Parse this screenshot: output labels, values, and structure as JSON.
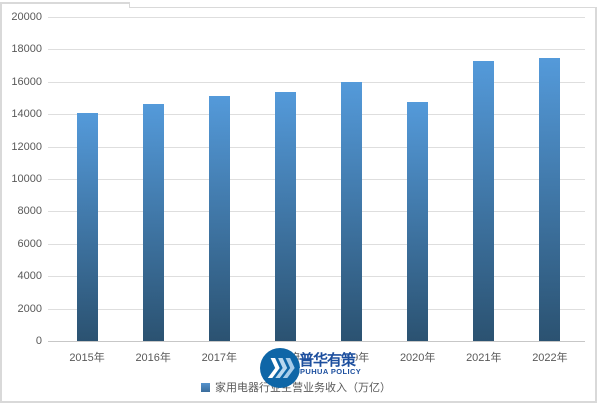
{
  "chart_data": {
    "type": "bar",
    "title": "",
    "categories": [
      "2015年",
      "2016年",
      "2017年",
      "2018年",
      "2019年",
      "2020年",
      "2021年",
      "2022年"
    ],
    "values": [
      14050,
      14600,
      15100,
      15400,
      16000,
      14750,
      17300,
      17500
    ],
    "ylim": [
      0,
      20000
    ],
    "ytick_step": 2000,
    "yticks": [
      0,
      2000,
      4000,
      6000,
      8000,
      10000,
      12000,
      14000,
      16000,
      18000,
      20000
    ],
    "xlabel": "",
    "ylabel": "",
    "grid": true,
    "legend_position": "bottom",
    "legend": "家用电器行业主营业务收入（万亿）",
    "colors": {
      "bar_top": "#549ada",
      "bar_bottom": "#2b5271",
      "gridline": "#dedede",
      "axis": "#c7c7c7",
      "label": "#595959",
      "border": "#d9d9d9"
    }
  },
  "watermark": {
    "name_cn": "普华有策",
    "name_en": "PUHUA POLICY",
    "logo_icon": "triple-chevron-circle-icon",
    "circle_color": "#0e66a7",
    "chevron_colors": [
      "#ffffff",
      "#b9d8ef",
      "#a7cce9"
    ],
    "text_color": "#1d4f9e"
  }
}
